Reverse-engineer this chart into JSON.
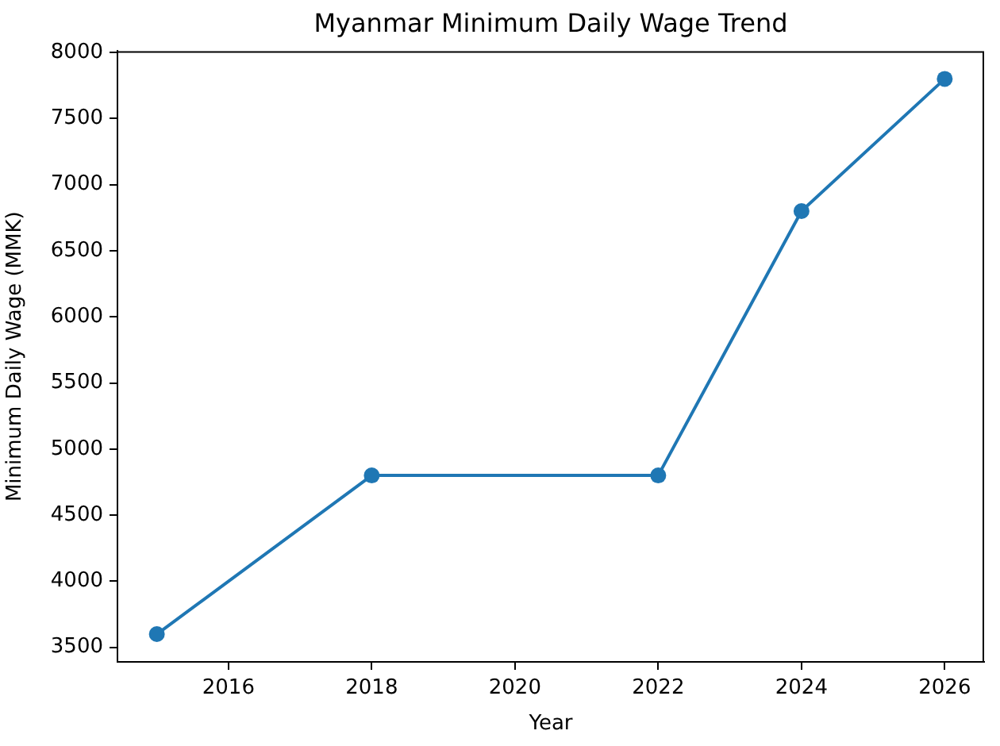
{
  "chart_data": {
    "type": "line",
    "title": "Myanmar Minimum Daily Wage Trend",
    "xlabel": "Year",
    "ylabel": "Minimum Daily Wage (MMK)",
    "x": [
      2015,
      2018,
      2022,
      2024,
      2026
    ],
    "values": [
      3600,
      4800,
      4800,
      6800,
      7800
    ],
    "color": "#1f77b4",
    "xlim": [
      2014.45,
      2026.55
    ],
    "xticks": [
      2016,
      2018,
      2020,
      2022,
      2024,
      2026
    ],
    "ylim": [
      3390,
      8010
    ],
    "yticks": [
      3500,
      4000,
      4500,
      5000,
      5500,
      6000,
      6500,
      7000,
      7500,
      8000
    ],
    "marker": "circle",
    "line_style": "solid",
    "grid": false,
    "legend": false
  }
}
